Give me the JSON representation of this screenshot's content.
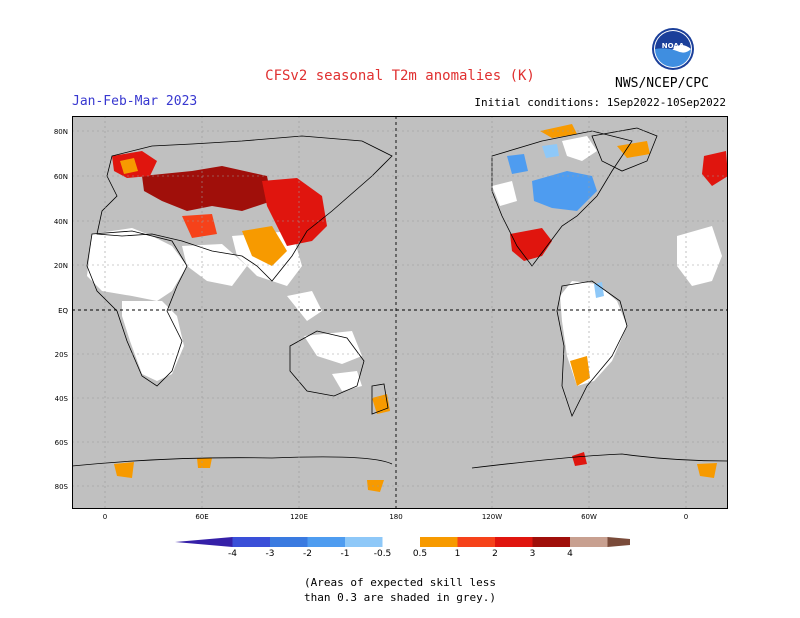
{
  "title": "CFSv2 seasonal T2m anomalies (K)",
  "season": "Jan-Feb-Mar 2023",
  "initial_conditions": "Initial conditions: 1Sep2022-10Sep2022",
  "agency": "NWS/NCEP/CPC",
  "logo_text": "NOAA",
  "lat_labels": [
    "80N",
    "60N",
    "40N",
    "20N",
    "EQ",
    "20S",
    "40S",
    "60S",
    "80S"
  ],
  "lon_labels": [
    "0",
    "60E",
    "120E",
    "180",
    "120W",
    "60W",
    "0"
  ],
  "colorbar": {
    "labels": [
      "-4",
      "-3",
      "-2",
      "-1",
      "-0.5",
      "0.5",
      "1",
      "2",
      "3",
      "4"
    ],
    "colors": [
      "#3520a8",
      "#3a4fd8",
      "#3a7ae0",
      "#4e9cf0",
      "#8ec8f8",
      "#ffffff",
      "#f79a00",
      "#f6421a",
      "#e0150e",
      "#a00f0a",
      "#c8a090",
      "#7a4b3a"
    ]
  },
  "note_line1": "(Areas of expected skill less",
  "note_line2": "than 0.3 are shaded in grey.)",
  "colors": {
    "no_skill_grey": "#c0c0c0",
    "title_red": "#e03030",
    "season_blue": "#3838d0"
  }
}
